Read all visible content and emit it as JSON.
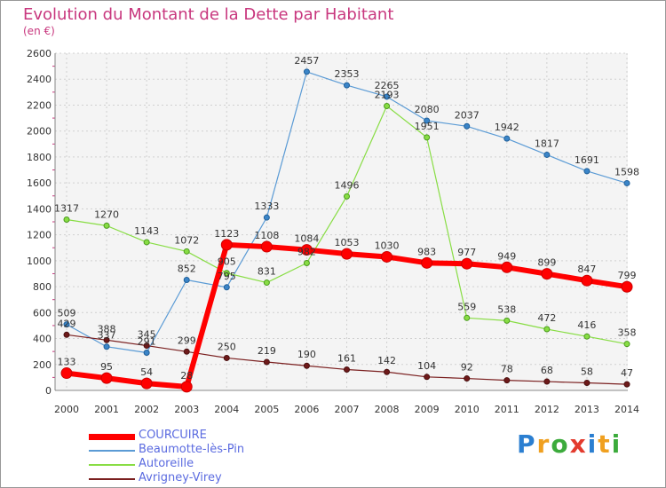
{
  "header": {
    "title": "Evolution du Montant de la Dette par Habitant",
    "subtitle": "(en €)"
  },
  "logo": {
    "letters": [
      "P",
      "r",
      "o",
      "x",
      "i",
      "t",
      "i"
    ],
    "colors": [
      "#2b7fd1",
      "#f0a020",
      "#3cab3c",
      "#e33b2e",
      "#2b7fd1",
      "#f0a020",
      "#3cab3c"
    ]
  },
  "chart_data": {
    "type": "line",
    "title": "Evolution du Montant de la Dette par Habitant",
    "subtitle": "(en €)",
    "xlabel": "",
    "ylabel": "",
    "ylim": [
      0,
      2600
    ],
    "yticks": [
      0,
      200,
      400,
      600,
      800,
      1000,
      1200,
      1400,
      1600,
      1800,
      2000,
      2200,
      2400,
      2600
    ],
    "x": [
      2000,
      2001,
      2002,
      2003,
      2004,
      2005,
      2006,
      2007,
      2008,
      2009,
      2010,
      2011,
      2012,
      2013,
      2014
    ],
    "grid": true,
    "legend_position": "bottom-left",
    "series": [
      {
        "name": "COURCUIRE",
        "color": "#ff0000",
        "values": [
          133,
          95,
          54,
          28,
          1123,
          1108,
          1084,
          1053,
          1030,
          983,
          977,
          949,
          899,
          847,
          799
        ]
      },
      {
        "name": "Beaumotte-lès-Pin",
        "color": "#5b9bd5",
        "values": [
          509,
          337,
          291,
          852,
          795,
          1333,
          2457,
          2353,
          2265,
          2080,
          2037,
          1942,
          1817,
          1691,
          1598
        ]
      },
      {
        "name": "Autoreille",
        "color": "#88dd44",
        "values": [
          1317,
          1270,
          1143,
          1072,
          905,
          831,
          982,
          1496,
          2193,
          1951,
          559,
          538,
          472,
          416,
          358
        ]
      },
      {
        "name": "Avrigney-Virey",
        "color": "#7a1f1f",
        "values": [
          429,
          388,
          345,
          299,
          250,
          219,
          190,
          161,
          142,
          104,
          92,
          78,
          68,
          58,
          47
        ]
      }
    ]
  }
}
